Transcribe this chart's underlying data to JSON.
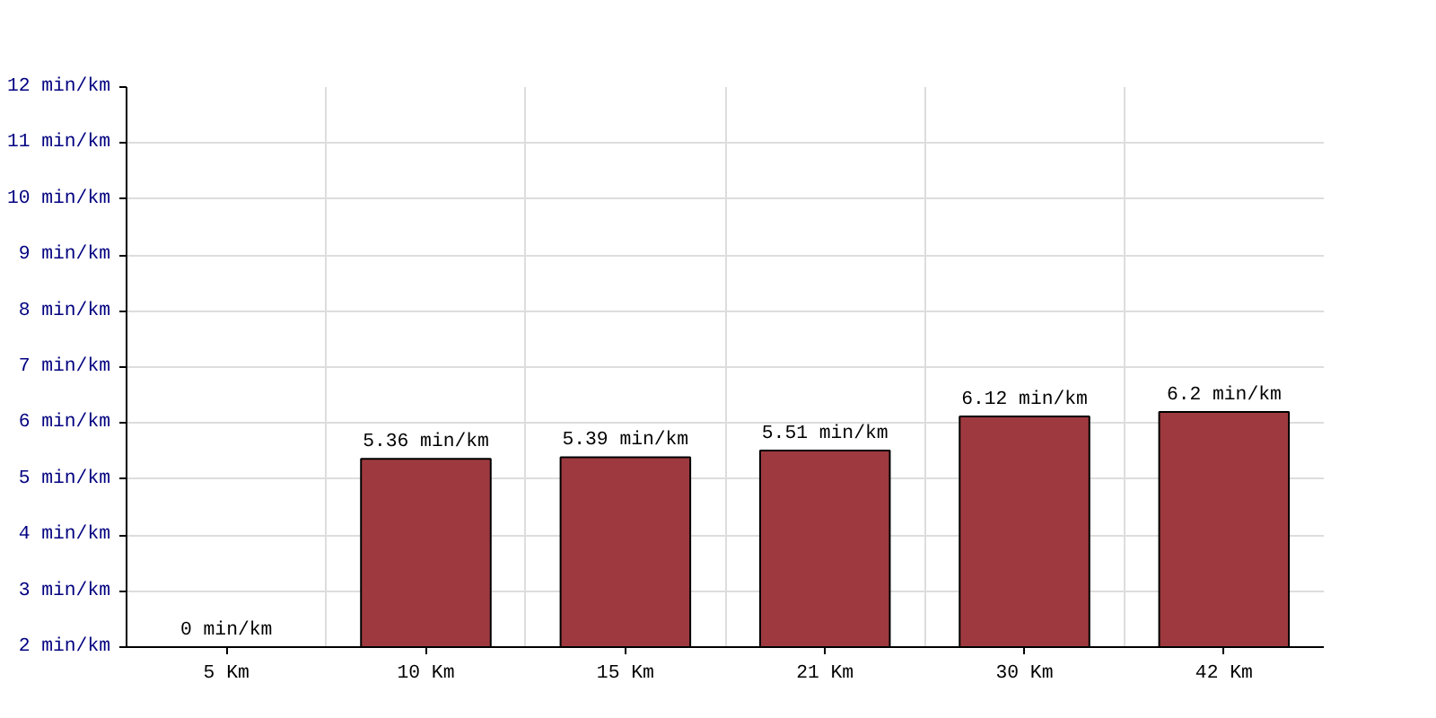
{
  "chart_data": {
    "type": "bar",
    "categories": [
      "5 Km",
      "10 Km",
      "15 Km",
      "21 Km",
      "30 Km",
      "42 Km"
    ],
    "values": [
      null,
      5.36,
      5.39,
      5.51,
      6.12,
      6.2
    ],
    "value_labels": [
      "0 min/km",
      "5.36 min/km",
      "5.39 min/km",
      "5.51 min/km",
      "6.12 min/km",
      "6.2 min/km"
    ],
    "color": "#9e3a3f",
    "ylim": [
      2,
      12
    ],
    "yticks": [
      {
        "value": 2,
        "label": "2 min/km"
      },
      {
        "value": 3,
        "label": "3 min/km"
      },
      {
        "value": 4,
        "label": "4 min/km"
      },
      {
        "value": 5,
        "label": "5 min/km"
      },
      {
        "value": 6,
        "label": "6 min/km"
      },
      {
        "value": 7,
        "label": "7 min/km"
      },
      {
        "value": 8,
        "label": "8 min/km"
      },
      {
        "value": 9,
        "label": "9 min/km"
      },
      {
        "value": 10,
        "label": "10 min/km"
      },
      {
        "value": 11,
        "label": "11 min/km"
      },
      {
        "value": 12,
        "label": "12 min/km"
      }
    ],
    "grid": true
  }
}
